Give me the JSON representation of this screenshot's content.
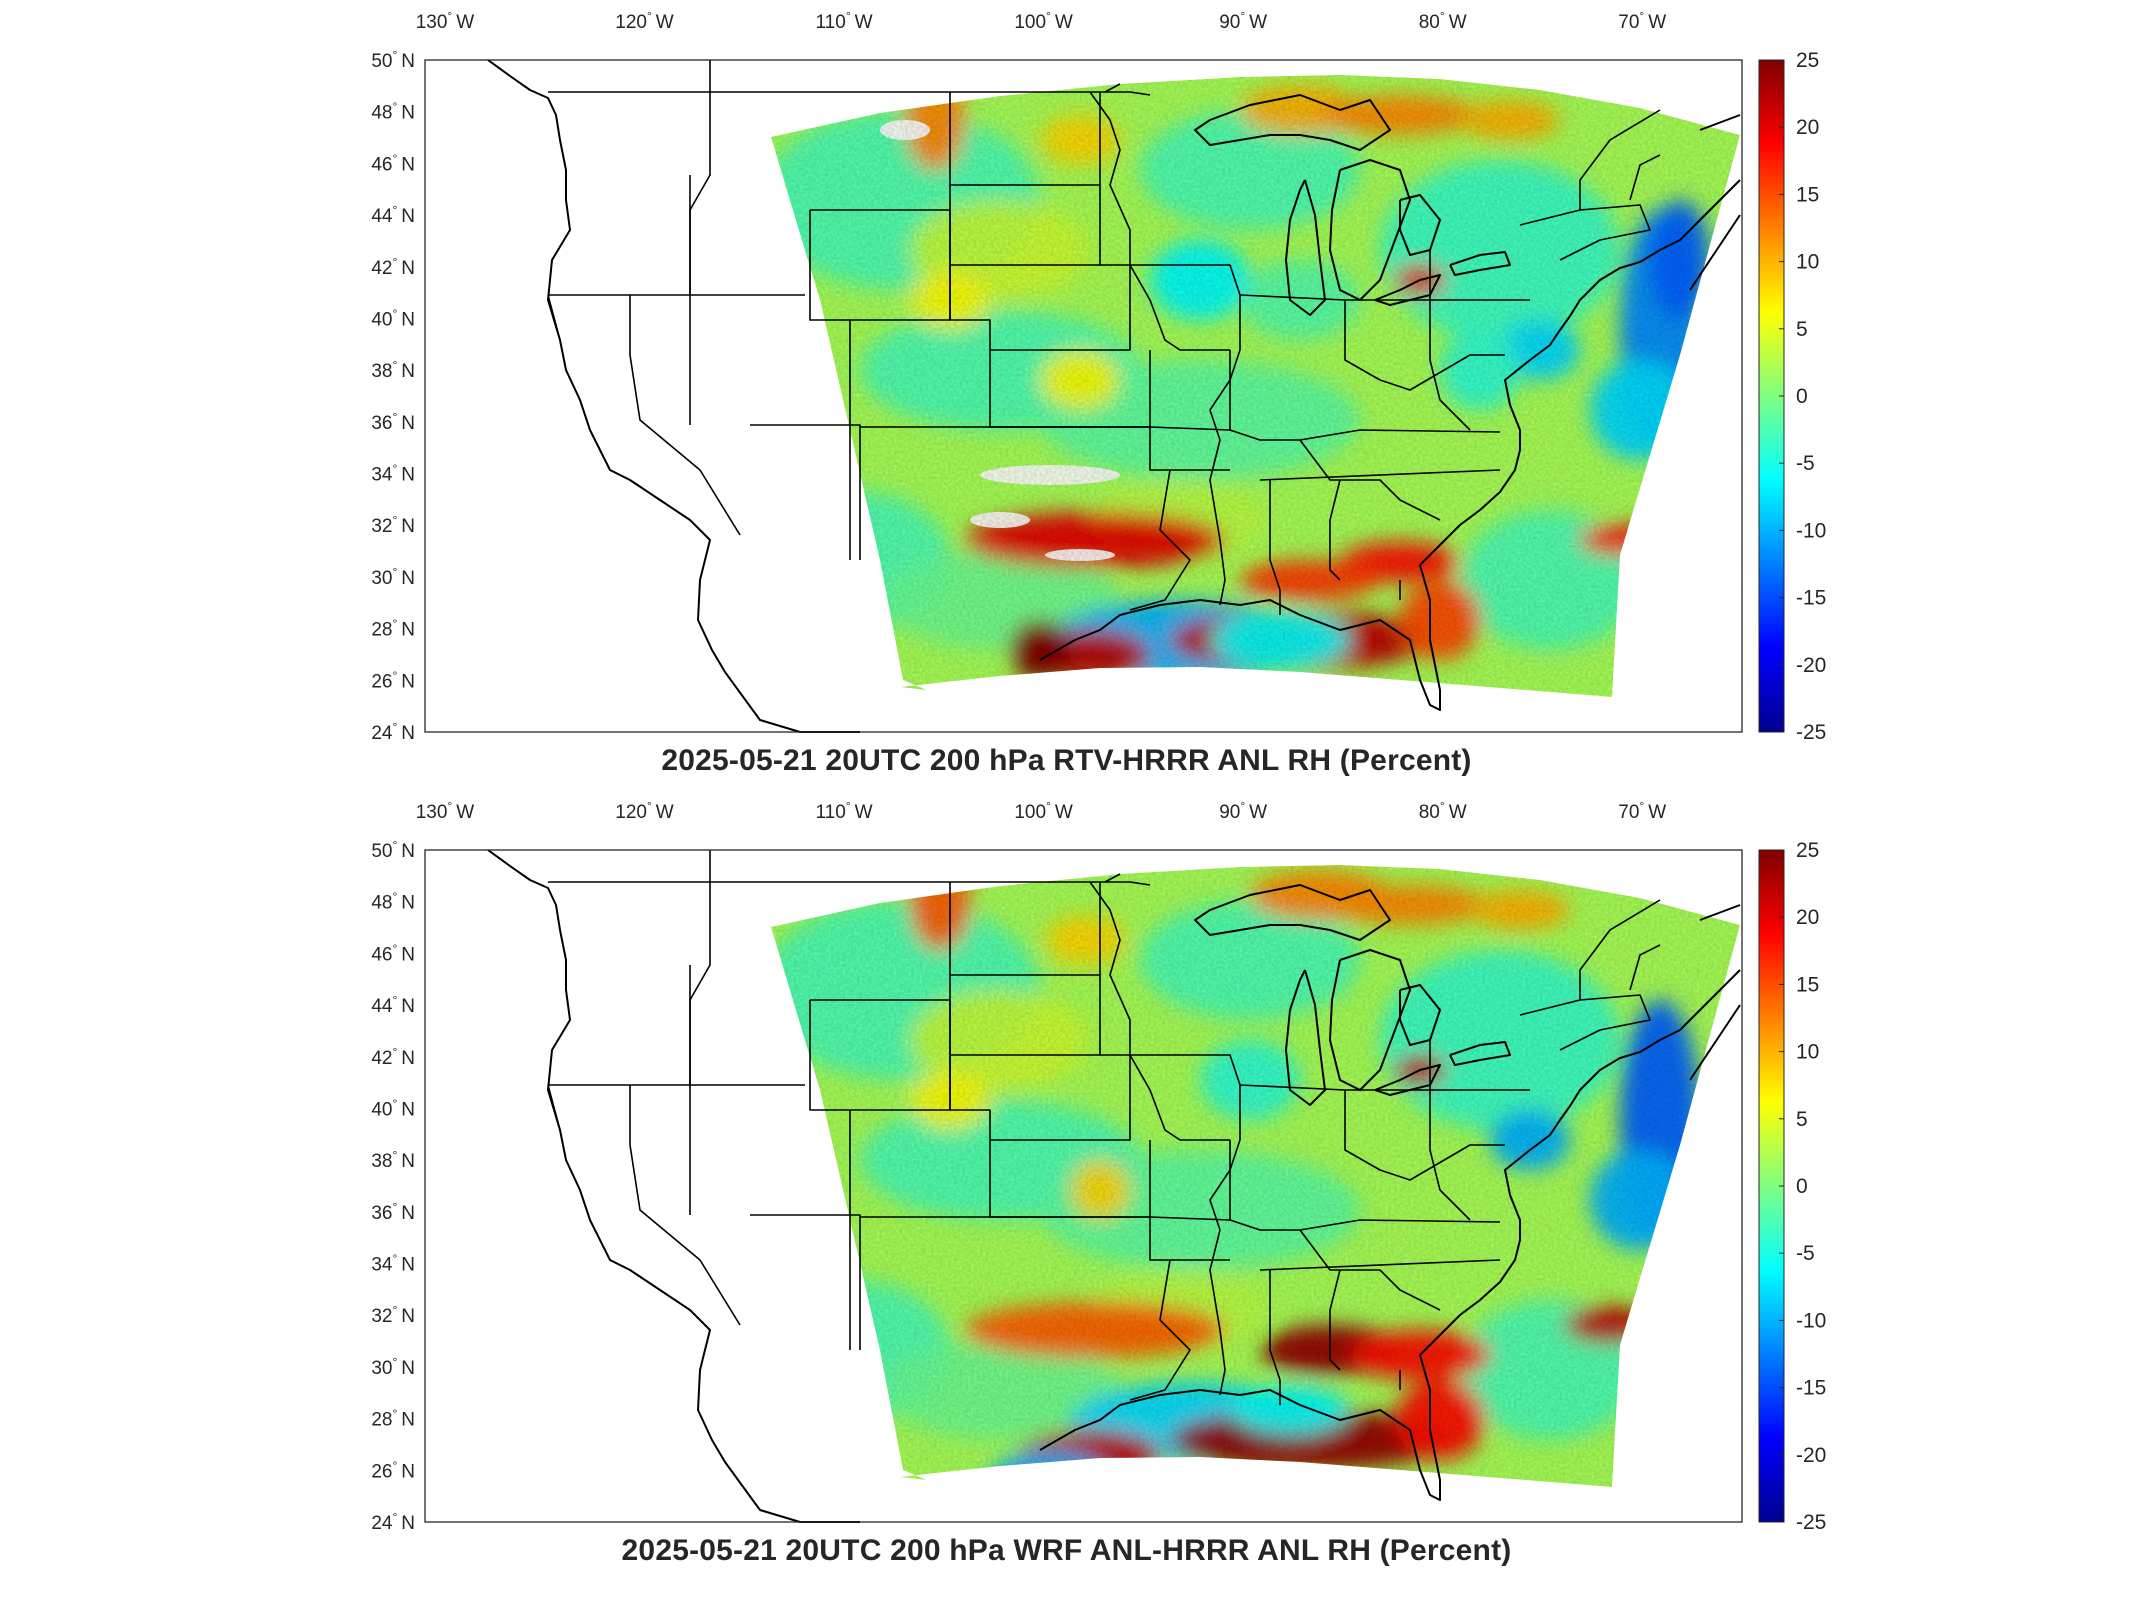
{
  "panels": [
    {
      "id": "rtv",
      "title": "2025-05-21 20UTC 200 hPa RTV-HRRR ANL RH (Percent)",
      "variant": 0
    },
    {
      "id": "wrf",
      "title": "2025-05-21 20UTC 200 hPa WRF ANL-HRRR ANL RH (Percent)",
      "variant": 1
    }
  ],
  "map": {
    "lon_labels": [
      "130",
      "120",
      "110",
      "100",
      "90",
      "80",
      "70"
    ],
    "lon_suffix": "W",
    "lat_labels": [
      "50",
      "48",
      "46",
      "44",
      "42",
      "40",
      "38",
      "36",
      "34",
      "32",
      "30",
      "28",
      "26",
      "24"
    ],
    "lat_suffix": "N",
    "lon_range": [
      -131,
      -65
    ],
    "lat_range": [
      24,
      50
    ],
    "degree_symbol": "°"
  },
  "colorbar": {
    "ticks": [
      "25",
      "20",
      "15",
      "10",
      "5",
      "0",
      "-5",
      "-10",
      "-15",
      "-20",
      "-25"
    ],
    "range": [
      -25,
      25
    ],
    "colormap": "jet",
    "colors": [
      "#00008f",
      "#0000ff",
      "#0080ff",
      "#00ffff",
      "#80ff80",
      "#ffff00",
      "#ff8000",
      "#ff0000",
      "#800000"
    ]
  },
  "colors": {
    "field_base": "#9ee27a",
    "outline": "#000000"
  }
}
